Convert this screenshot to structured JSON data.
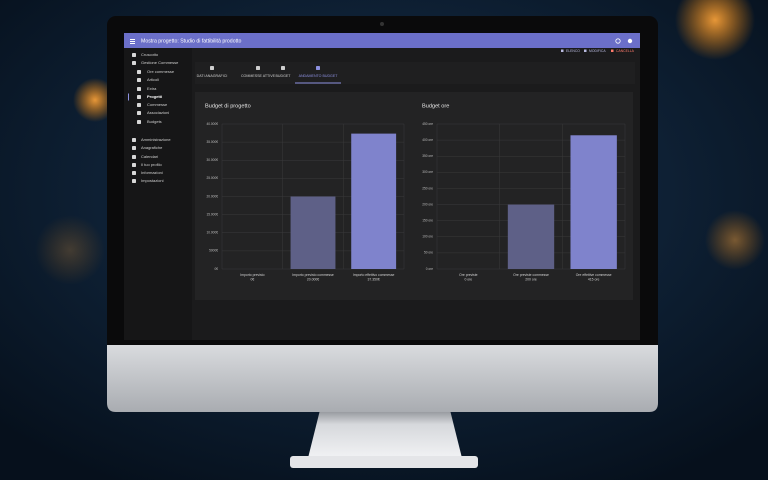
{
  "header": {
    "title": "Mostra progetto: Studio di fattibilità prodotto",
    "actions": [
      "ELENCO",
      "MODIFICA",
      "CANCELLA"
    ]
  },
  "sidebar": {
    "items": [
      "Cruscotto",
      "Gestione Commesse",
      "Ore commesse",
      "Articoli",
      "Extra",
      "Progetti",
      "Commesse",
      "Associazioni",
      "Budgets",
      "Amministrazione",
      "Anagrafiche",
      "Calendari",
      "Il tuo profilo",
      "Informazioni",
      "Impostazioni"
    ]
  },
  "tabs": [
    "DATI ANAGRAFICI",
    "COMMESSE ATTIVE",
    "BUDGET",
    "ANDAMENTO BUDGET"
  ],
  "chart_data": [
    {
      "type": "bar",
      "title": "Budget di progetto",
      "categories": [
        "Importo previsto",
        "Importo previsto commesse",
        "Importo effettivo commesse"
      ],
      "values": [
        0,
        20000,
        37350
      ],
      "value_labels": [
        "0€",
        "20.000€",
        "37.350€"
      ],
      "colors": [
        "#6b6e9e",
        "#5e6087",
        "#7f83cc"
      ],
      "ylim": [
        0,
        40000
      ],
      "yticks": [
        {
          "value": 0,
          "label": "0€"
        },
        {
          "value": 5000,
          "label": "5000€"
        },
        {
          "value": 10000,
          "label": "10.000€"
        },
        {
          "value": 15000,
          "label": "15.000€"
        },
        {
          "value": 20000,
          "label": "20.000€"
        },
        {
          "value": 25000,
          "label": "25.000€"
        },
        {
          "value": 30000,
          "label": "30.000€"
        },
        {
          "value": 35000,
          "label": "35.000€"
        },
        {
          "value": 40000,
          "label": "40.000€"
        }
      ],
      "grid": true
    },
    {
      "type": "bar",
      "title": "Budget ore",
      "categories": [
        "Ore previste",
        "Ore previste commesse",
        "Ore effettive commesse"
      ],
      "values": [
        0,
        200,
        415
      ],
      "value_labels": [
        "0 ore",
        "200 ore",
        "415 ore"
      ],
      "colors": [
        "#6b6e9e",
        "#5e6087",
        "#7f83cc"
      ],
      "ylim": [
        0,
        450
      ],
      "yticks": [
        {
          "value": 0,
          "label": "0 ore"
        },
        {
          "value": 50,
          "label": "50 ore"
        },
        {
          "value": 100,
          "label": "100 ore"
        },
        {
          "value": 150,
          "label": "150 ore"
        },
        {
          "value": 200,
          "label": "200 ore"
        },
        {
          "value": 250,
          "label": "250 ore"
        },
        {
          "value": 300,
          "label": "300 ore"
        },
        {
          "value": 350,
          "label": "350 ore"
        },
        {
          "value": 400,
          "label": "400 ore"
        },
        {
          "value": 450,
          "label": "450 ore"
        }
      ],
      "grid": true
    }
  ]
}
